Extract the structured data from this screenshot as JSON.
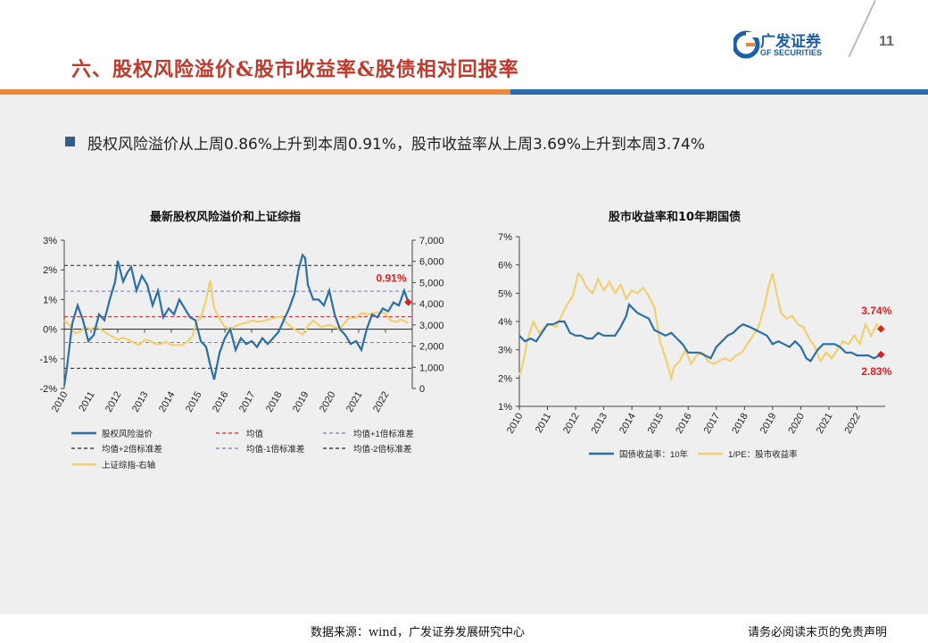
{
  "header": {
    "title": "六、股权风险溢价&股市收益率&股债相对回报率",
    "logo_cn": "广发证券",
    "logo_en": "GF SECURITIES",
    "page_number": "11",
    "colors": {
      "title": "#c0392b",
      "band_left": "#e8883a",
      "band_right": "#2b6cb0",
      "brand": "#1a5fa8"
    }
  },
  "bullet": {
    "text": "股权风险溢价从上周0.86%上升到本周0.91%，股市收益率从上周3.69%上升到本周3.74%"
  },
  "footer": {
    "source": "数据来源：wind，广发证券发展研究中心",
    "disclaimer": "请务必阅读末页的免责声明"
  },
  "chart_data": [
    {
      "type": "line",
      "title": "最新股权风险溢价和上证综指",
      "x_labels": [
        "2010",
        "2011",
        "2012",
        "2013",
        "2014",
        "2015",
        "2016",
        "2017",
        "2018",
        "2019",
        "2020",
        "2021",
        "2022"
      ],
      "x_range": [
        2010,
        2023
      ],
      "y_left": {
        "range": [
          -2,
          3
        ],
        "ticks": [
          "-2%",
          "-1%",
          "0%",
          "1%",
          "2%",
          "3%"
        ],
        "tick_values": [
          -2,
          -1,
          0,
          1,
          2,
          3
        ]
      },
      "y_right": {
        "range": [
          0,
          7000
        ],
        "ticks": [
          "0",
          "1,000",
          "2,000",
          "3,000",
          "4,000",
          "5,000",
          "6,000",
          "7,000"
        ],
        "tick_values": [
          0,
          1000,
          2000,
          3000,
          4000,
          5000,
          6000,
          7000
        ]
      },
      "reference_lines": [
        {
          "name": "均值",
          "value": 0.42,
          "color": "#e02020"
        },
        {
          "name": "均值+1倍标准差",
          "value": 1.28,
          "color": "#7b7bbf"
        },
        {
          "name": "均值+2倍标准差",
          "value": 2.15,
          "color": "#222222"
        },
        {
          "name": "均值-1倍标准差",
          "value": -0.45,
          "color": "#7b7bbf"
        },
        {
          "name": "均值-2倍标准差",
          "value": -1.32,
          "color": "#222222"
        }
      ],
      "series": [
        {
          "name": "股权风险溢价",
          "axis": "left",
          "color": "#2a6fa8",
          "x": [
            2010.0,
            2010.1,
            2010.3,
            2010.5,
            2010.7,
            2010.9,
            2011.1,
            2011.3,
            2011.5,
            2011.7,
            2011.9,
            2012.0,
            2012.2,
            2012.35,
            2012.5,
            2012.7,
            2012.9,
            2013.1,
            2013.3,
            2013.5,
            2013.7,
            2013.9,
            2014.1,
            2014.3,
            2014.5,
            2014.7,
            2014.9,
            2015.1,
            2015.3,
            2015.45,
            2015.6,
            2015.8,
            2016.0,
            2016.2,
            2016.4,
            2016.6,
            2016.8,
            2017.0,
            2017.2,
            2017.4,
            2017.6,
            2017.8,
            2018.0,
            2018.2,
            2018.4,
            2018.6,
            2018.75,
            2018.9,
            2019.0,
            2019.1,
            2019.3,
            2019.5,
            2019.7,
            2019.9,
            2020.1,
            2020.3,
            2020.5,
            2020.7,
            2020.9,
            2021.1,
            2021.3,
            2021.5,
            2021.7,
            2021.9,
            2022.1,
            2022.3,
            2022.5,
            2022.7,
            2022.85
          ],
          "values": [
            -1.9,
            -1.3,
            0.2,
            0.8,
            0.3,
            -0.4,
            -0.2,
            0.5,
            0.3,
            1.0,
            1.6,
            2.3,
            1.6,
            1.9,
            2.1,
            1.3,
            1.8,
            1.5,
            0.8,
            1.3,
            0.4,
            0.7,
            0.5,
            1.0,
            0.7,
            0.4,
            0.3,
            -0.4,
            -0.6,
            -1.2,
            -1.7,
            -0.8,
            -0.3,
            0.0,
            -0.7,
            -0.3,
            -0.5,
            -0.4,
            -0.6,
            -0.3,
            -0.5,
            -0.3,
            -0.1,
            0.3,
            0.7,
            1.2,
            2.0,
            2.5,
            2.4,
            1.5,
            1.0,
            1.0,
            0.8,
            1.3,
            0.5,
            0.0,
            -0.2,
            -0.5,
            -0.4,
            -0.7,
            0.0,
            0.5,
            0.4,
            0.7,
            0.6,
            0.9,
            0.8,
            1.3,
            0.91
          ]
        },
        {
          "name": "上证综指-右轴",
          "axis": "right",
          "color": "#f0d070",
          "x": [
            2010.0,
            2010.2,
            2010.4,
            2010.6,
            2010.8,
            2011.0,
            2011.2,
            2011.4,
            2011.6,
            2011.8,
            2012.0,
            2012.2,
            2012.4,
            2012.6,
            2012.8,
            2013.0,
            2013.2,
            2013.4,
            2013.6,
            2013.8,
            2014.0,
            2014.2,
            2014.4,
            2014.6,
            2014.8,
            2014.95,
            2015.1,
            2015.3,
            2015.45,
            2015.6,
            2015.8,
            2016.0,
            2016.2,
            2016.4,
            2016.6,
            2016.8,
            2017.0,
            2017.3,
            2017.6,
            2017.9,
            2018.1,
            2018.3,
            2018.6,
            2018.9,
            2019.1,
            2019.3,
            2019.6,
            2019.9,
            2020.1,
            2020.3,
            2020.6,
            2020.9,
            2021.1,
            2021.4,
            2021.7,
            2022.0,
            2022.2,
            2022.4,
            2022.6,
            2022.85
          ],
          "values": [
            3200,
            3000,
            2600,
            2700,
            2900,
            2800,
            2950,
            2750,
            2600,
            2450,
            2300,
            2400,
            2300,
            2150,
            2050,
            2300,
            2250,
            2100,
            2100,
            2200,
            2050,
            2050,
            2050,
            2200,
            2500,
            3200,
            3300,
            4200,
            5100,
            3800,
            3300,
            2900,
            2800,
            2950,
            3050,
            3100,
            3200,
            3150,
            3250,
            3350,
            3400,
            3100,
            2800,
            2550,
            2950,
            3200,
            2900,
            3000,
            2900,
            2800,
            3300,
            3350,
            3550,
            3500,
            3600,
            3550,
            3200,
            3150,
            3250,
            3100
          ]
        }
      ],
      "annotations": [
        {
          "text": "0.91%",
          "color": "#e02020"
        }
      ]
    },
    {
      "type": "line",
      "title": "股市收益率和10年期国债",
      "x_labels": [
        "2010",
        "2011",
        "2012",
        "2013",
        "2014",
        "2015",
        "2016",
        "2017",
        "2018",
        "2019",
        "2020",
        "2021",
        "2022"
      ],
      "x_range": [
        2010,
        2023
      ],
      "y": {
        "range": [
          1,
          7
        ],
        "ticks": [
          "1%",
          "2%",
          "3%",
          "4%",
          "5%",
          "6%",
          "7%"
        ],
        "tick_values": [
          1,
          2,
          3,
          4,
          5,
          6,
          7
        ]
      },
      "series": [
        {
          "name": "国债收益率：10年",
          "color": "#2a6fa8",
          "x": [
            2010.0,
            2010.2,
            2010.4,
            2010.6,
            2010.8,
            2011.0,
            2011.2,
            2011.4,
            2011.6,
            2011.8,
            2012.0,
            2012.2,
            2012.4,
            2012.6,
            2012.8,
            2013.0,
            2013.2,
            2013.4,
            2013.6,
            2013.8,
            2013.9,
            2014.0,
            2014.2,
            2014.4,
            2014.6,
            2014.8,
            2015.0,
            2015.2,
            2015.4,
            2015.6,
            2015.8,
            2016.0,
            2016.2,
            2016.4,
            2016.6,
            2016.8,
            2017.0,
            2017.2,
            2017.4,
            2017.6,
            2017.8,
            2017.95,
            2018.2,
            2018.4,
            2018.6,
            2018.8,
            2019.0,
            2019.2,
            2019.4,
            2019.6,
            2019.8,
            2020.0,
            2020.2,
            2020.35,
            2020.6,
            2020.8,
            2021.0,
            2021.2,
            2021.4,
            2021.6,
            2021.8,
            2022.0,
            2022.2,
            2022.4,
            2022.6,
            2022.85
          ],
          "values": [
            3.5,
            3.3,
            3.4,
            3.3,
            3.6,
            3.9,
            3.9,
            4.0,
            4.0,
            3.6,
            3.5,
            3.5,
            3.4,
            3.4,
            3.6,
            3.5,
            3.5,
            3.5,
            3.8,
            4.2,
            4.6,
            4.5,
            4.3,
            4.2,
            4.1,
            3.7,
            3.6,
            3.5,
            3.6,
            3.4,
            3.2,
            2.9,
            2.9,
            2.9,
            2.8,
            2.7,
            3.1,
            3.3,
            3.5,
            3.6,
            3.8,
            3.9,
            3.8,
            3.7,
            3.6,
            3.5,
            3.2,
            3.3,
            3.2,
            3.1,
            3.3,
            3.1,
            2.7,
            2.6,
            3.0,
            3.2,
            3.2,
            3.2,
            3.1,
            2.9,
            2.9,
            2.8,
            2.8,
            2.8,
            2.7,
            2.83
          ]
        },
        {
          "name": "1/PE：股市收益率",
          "color": "#f0d070",
          "x": [
            2010.0,
            2010.1,
            2010.3,
            2010.5,
            2010.7,
            2010.9,
            2011.1,
            2011.3,
            2011.5,
            2011.7,
            2011.9,
            2012.1,
            2012.2,
            2012.4,
            2012.6,
            2012.8,
            2013.0,
            2013.2,
            2013.4,
            2013.6,
            2013.8,
            2014.0,
            2014.2,
            2014.4,
            2014.6,
            2014.8,
            2015.0,
            2015.2,
            2015.4,
            2015.5,
            2015.7,
            2015.9,
            2016.1,
            2016.3,
            2016.5,
            2016.7,
            2016.9,
            2017.1,
            2017.3,
            2017.5,
            2017.7,
            2017.9,
            2018.1,
            2018.3,
            2018.5,
            2018.7,
            2018.85,
            2019.0,
            2019.1,
            2019.3,
            2019.5,
            2019.7,
            2019.9,
            2020.1,
            2020.3,
            2020.5,
            2020.7,
            2020.9,
            2021.1,
            2021.3,
            2021.5,
            2021.7,
            2021.9,
            2022.1,
            2022.3,
            2022.5,
            2022.7,
            2022.85
          ],
          "values": [
            2.1,
            2.4,
            3.4,
            4.0,
            3.6,
            3.8,
            3.9,
            3.8,
            4.2,
            4.6,
            4.9,
            5.7,
            5.6,
            5.2,
            5.0,
            5.5,
            5.1,
            5.4,
            5.0,
            5.3,
            4.8,
            5.1,
            5.0,
            5.2,
            4.9,
            4.5,
            3.3,
            2.7,
            2.0,
            2.4,
            2.6,
            3.0,
            2.5,
            2.8,
            2.9,
            2.6,
            2.5,
            2.6,
            2.7,
            2.6,
            2.8,
            2.9,
            3.2,
            3.5,
            3.8,
            4.5,
            5.2,
            5.7,
            5.2,
            4.3,
            4.1,
            4.2,
            3.9,
            3.8,
            3.4,
            3.1,
            2.6,
            2.9,
            2.7,
            3.0,
            3.3,
            3.2,
            3.5,
            3.2,
            3.9,
            3.5,
            3.9,
            3.74
          ]
        }
      ],
      "annotations": [
        {
          "text": "3.74%",
          "color": "#e02020"
        },
        {
          "text": "2.83%",
          "color": "#e02020"
        }
      ]
    }
  ]
}
